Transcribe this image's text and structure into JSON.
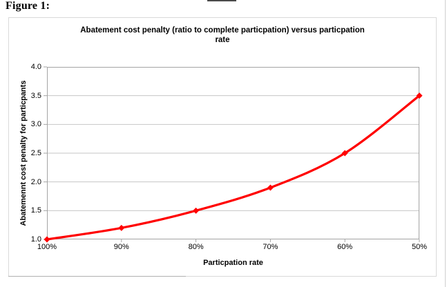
{
  "figure_label": "Figure 1:",
  "chart_data": {
    "type": "line",
    "title": "Abatement cost penalty (ratio to complete particpation) versus particpation rate",
    "title_line1": "Abatement cost penalty (ratio to complete particpation) versus particpation",
    "title_line2": "rate",
    "xlabel": "Particpation rate",
    "ylabel": "Abatemennt cost penalty for particpants",
    "categories": [
      "100%",
      "90%",
      "80%",
      "70%",
      "60%",
      "50%"
    ],
    "values": [
      1.0,
      1.2,
      1.5,
      1.9,
      2.5,
      3.5
    ],
    "ylim": [
      1.0,
      4.0
    ],
    "ytick_step": 0.5,
    "ytick_labels": [
      "4.0",
      "3.5",
      "3.0",
      "2.5",
      "2.0",
      "1.5",
      "1.0"
    ],
    "grid": "horizontal",
    "legend": "none",
    "marker": "diamond",
    "series_color": "#ff0000",
    "gridline_color": "#c6c6c6",
    "axis_color": "#a3a3a3",
    "line_width": 3.25,
    "marker_size": 4.5
  }
}
